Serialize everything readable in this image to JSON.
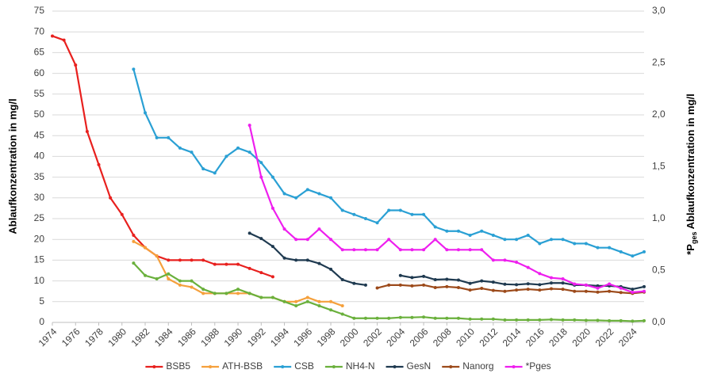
{
  "chart_data": {
    "type": "line",
    "ylabel": "Ablaufkonzentration in mg/l",
    "y2label": [
      "*P",
      "ges",
      " Ablaufkonzentration in mg/l"
    ],
    "xlim": [
      1974,
      2025
    ],
    "xticks": [
      1974,
      1976,
      1978,
      1980,
      1982,
      1984,
      1986,
      1988,
      1990,
      1992,
      1994,
      1996,
      1998,
      2000,
      2002,
      2004,
      2006,
      2008,
      2010,
      2012,
      2014,
      2016,
      2018,
      2020,
      2022,
      2024
    ],
    "ylim": [
      0,
      75
    ],
    "yticks": [
      0,
      5,
      10,
      15,
      20,
      25,
      30,
      35,
      40,
      45,
      50,
      55,
      60,
      65,
      70,
      75
    ],
    "y2lim": [
      0,
      3
    ],
    "y2ticks": [
      {
        "value": 0,
        "label": "0,0"
      },
      {
        "value": 0.5,
        "label": "0,5"
      },
      {
        "value": 1,
        "label": "1,0"
      },
      {
        "value": 1.5,
        "label": "1,5"
      },
      {
        "value": 2,
        "label": "2,0"
      },
      {
        "value": 2.5,
        "label": "2,5"
      },
      {
        "value": 3,
        "label": "3,0"
      }
    ],
    "grid": true,
    "legend": "bottom",
    "series": [
      {
        "name": "BSB5",
        "color": "#e8201e",
        "x": [
          1974,
          1975,
          1976,
          1977,
          1978,
          1979,
          1980,
          1981,
          1982,
          1983,
          1984,
          1985,
          1986,
          1987,
          1988,
          1989,
          1990,
          1991,
          1992,
          1993
        ],
        "values": [
          69,
          68,
          62,
          46,
          38,
          30,
          26,
          21,
          18,
          16,
          15,
          15,
          15,
          15,
          14,
          14,
          14,
          13,
          12,
          11
        ]
      },
      {
        "name": "ATH-BSB",
        "color": "#f5a03c",
        "x": [
          1981,
          1982,
          1983,
          1984,
          1985,
          1986,
          1987,
          1988,
          1989,
          1990,
          1991,
          1992,
          1993,
          1994,
          1995,
          1996,
          1997,
          1998,
          1999
        ],
        "values": [
          19.5,
          18,
          16,
          10.5,
          9,
          8.5,
          7,
          7,
          7,
          7,
          7,
          6,
          6,
          5,
          5,
          6,
          5,
          5,
          4
        ]
      },
      {
        "name": "CSB",
        "color": "#2aa0d4",
        "x": [
          1981,
          1982,
          1983,
          1984,
          1985,
          1986,
          1987,
          1988,
          1989,
          1990,
          1991,
          1992,
          1993,
          1994,
          1995,
          1996,
          1997,
          1998,
          1999,
          2000,
          2001,
          2002,
          2003,
          2004,
          2005,
          2006,
          2007,
          2008,
          2009,
          2010,
          2011,
          2012,
          2013,
          2014,
          2015,
          2016,
          2017,
          2018,
          2019,
          2020,
          2021,
          2022,
          2023,
          2024,
          2025
        ],
        "values": [
          61,
          50.5,
          44.5,
          44.5,
          42,
          41,
          37,
          36,
          40,
          42,
          41,
          38.5,
          35,
          31,
          30,
          32,
          31,
          30,
          27,
          26,
          25,
          24,
          27,
          27,
          26,
          26,
          23,
          22,
          22,
          21,
          22,
          21,
          20,
          20,
          21,
          19,
          20,
          20,
          19,
          19,
          18,
          18,
          17,
          16,
          17
        ]
      },
      {
        "name": "NH4-N",
        "color": "#6ab03c",
        "x": [
          1981,
          1982,
          1983,
          1984,
          1985,
          1986,
          1987,
          1988,
          1989,
          1990,
          1991,
          1992,
          1993,
          1994,
          1995,
          1996,
          1997,
          1998,
          1999,
          2000,
          2001,
          2002,
          2003,
          2004,
          2005,
          2006,
          2007,
          2008,
          2009,
          2010,
          2011,
          2012,
          2013,
          2014,
          2015,
          2016,
          2017,
          2018,
          2019,
          2020,
          2021,
          2022,
          2023,
          2024,
          2025
        ],
        "values": [
          14.3,
          11.3,
          10.5,
          11.7,
          10,
          10,
          8,
          7,
          7,
          8,
          7,
          6,
          6,
          5,
          4,
          5,
          4,
          3,
          2,
          1,
          1,
          1,
          1,
          1.2,
          1.2,
          1.3,
          1,
          1,
          1,
          0.8,
          0.8,
          0.8,
          0.6,
          0.6,
          0.6,
          0.6,
          0.7,
          0.6,
          0.6,
          0.5,
          0.5,
          0.4,
          0.4,
          0.3,
          0.4
        ]
      },
      {
        "name": "GesN",
        "color": "#1f3a50",
        "x": [
          1991,
          1992,
          1993,
          1994,
          1995,
          1996,
          1997,
          1998,
          1999,
          2000,
          2001,
          2002,
          2003,
          2004,
          2005,
          2006,
          2007,
          2008,
          2009,
          2010,
          2011,
          2012,
          2013,
          2014,
          2015,
          2016,
          2017,
          2018,
          2019,
          2020,
          2021,
          2022,
          2023,
          2024,
          2025
        ],
        "values": [
          21.5,
          20.2,
          18.3,
          15.5,
          15,
          15,
          14.2,
          12.8,
          10.3,
          9.4,
          9,
          null,
          null,
          11.3,
          10.8,
          11.1,
          10.3,
          10.4,
          10.2,
          9.4,
          10,
          9.7,
          9.2,
          9.1,
          9.3,
          9.1,
          9.5,
          9.5,
          9,
          9,
          8.8,
          8.8,
          8.6,
          8,
          8.6
        ]
      },
      {
        "name": "Nanorg",
        "color": "#9c4a1a",
        "x": [
          2002,
          2003,
          2004,
          2005,
          2006,
          2007,
          2008,
          2009,
          2010,
          2011,
          2012,
          2013,
          2014,
          2015,
          2016,
          2017,
          2018,
          2019,
          2020,
          2021,
          2022,
          2023,
          2024,
          2025
        ],
        "values": [
          8.3,
          9,
          9,
          8.8,
          9,
          8.4,
          8.6,
          8.4,
          7.8,
          8.2,
          7.7,
          7.5,
          7.8,
          8,
          7.8,
          8.1,
          8,
          7.5,
          7.5,
          7.3,
          7.5,
          7.2,
          7,
          7.3
        ]
      },
      {
        "name": "*Pges",
        "color": "#ee1fee",
        "axis": "y2",
        "x": [
          1991,
          1992,
          1993,
          1994,
          1995,
          1996,
          1997,
          1998,
          1999,
          2000,
          2001,
          2002,
          2003,
          2004,
          2005,
          2006,
          2007,
          2008,
          2009,
          2010,
          2011,
          2012,
          2013,
          2014,
          2015,
          2016,
          2017,
          2018,
          2019,
          2020,
          2021,
          2022,
          2023,
          2024,
          2025
        ],
        "values": [
          1.9,
          1.4,
          1.1,
          0.9,
          0.8,
          0.8,
          0.9,
          0.8,
          0.7,
          0.7,
          0.7,
          0.7,
          0.8,
          0.7,
          0.7,
          0.7,
          0.8,
          0.7,
          0.7,
          0.7,
          0.7,
          0.6,
          0.6,
          0.58,
          0.53,
          0.47,
          0.43,
          0.42,
          0.37,
          0.36,
          0.33,
          0.37,
          0.33,
          0.29,
          0.3
        ]
      }
    ]
  }
}
